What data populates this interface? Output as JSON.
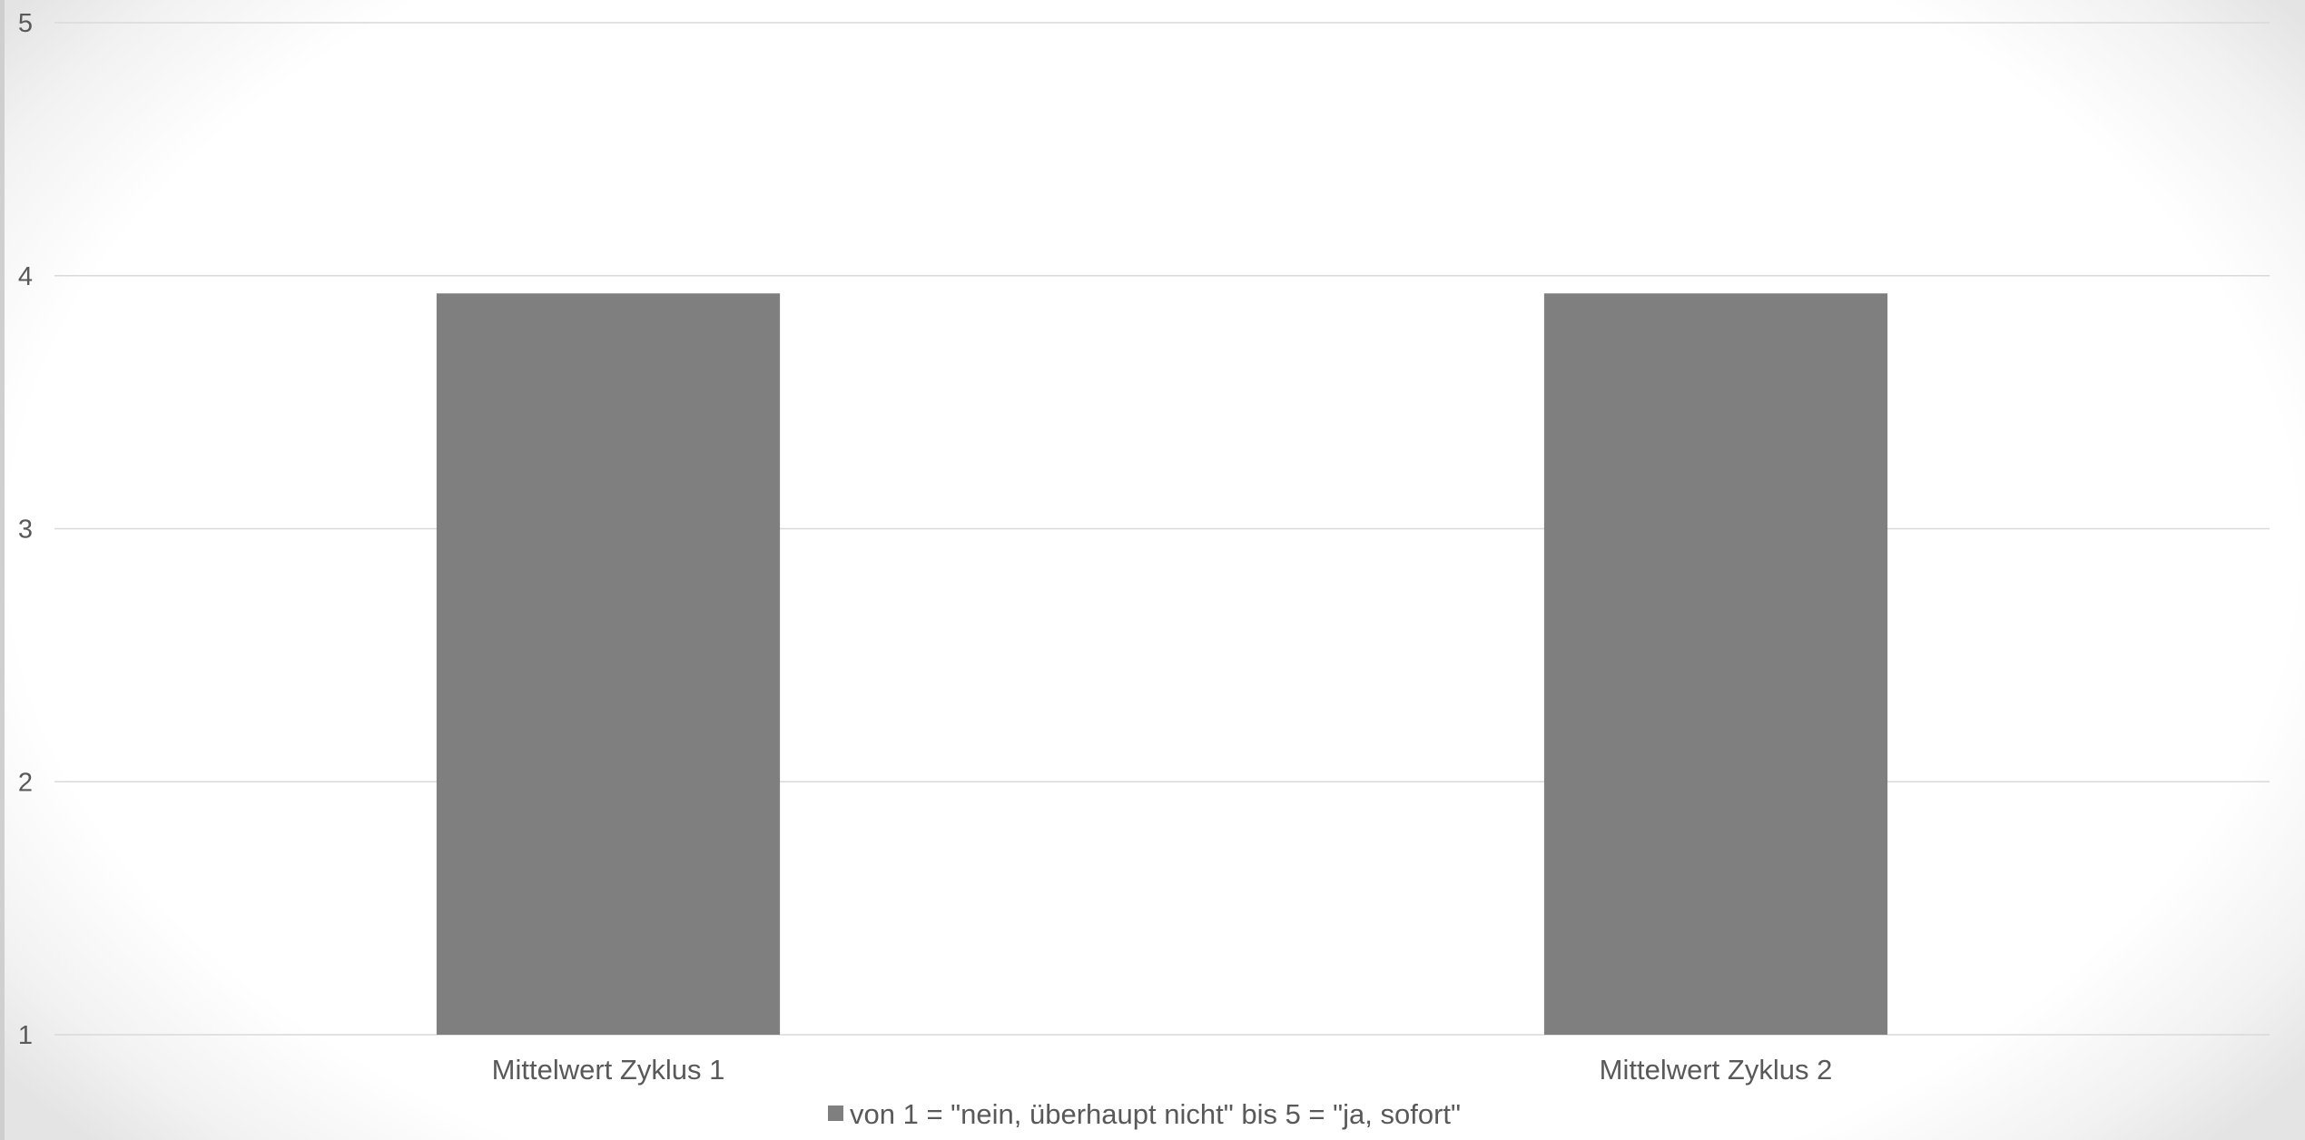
{
  "chart_data": {
    "type": "bar",
    "categories": [
      "Mittelwert Zyklus 1",
      "Mittelwert Zyklus 2"
    ],
    "series": [
      {
        "name": "von 1 = \"nein, überhaupt nicht\" bis 5 = \"ja, sofort\"",
        "values": [
          3.93,
          3.93
        ],
        "color": "#7f7f7f"
      }
    ],
    "ylim": [
      1,
      5
    ],
    "yticks": [
      "1",
      "2",
      "3",
      "4",
      "5"
    ],
    "grid": true,
    "gridColor": "#d9d9d9",
    "legend": "bottom"
  }
}
